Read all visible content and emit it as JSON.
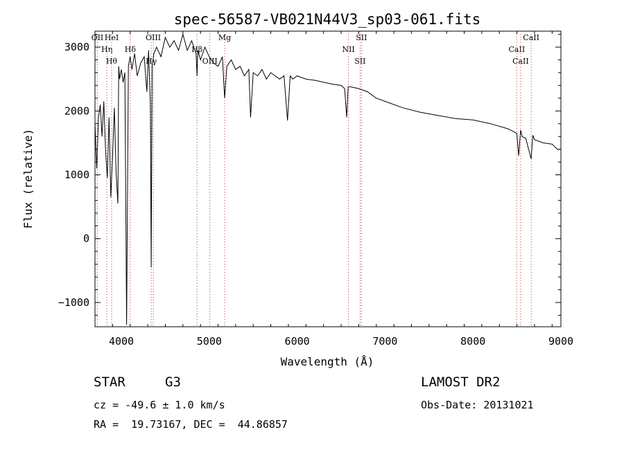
{
  "chart_data": {
    "type": "line",
    "title": "spec-56587-VB021N44V3_sp03-061.fits",
    "xlabel": "Wavelength (Å)",
    "ylabel": "Flux (relative)",
    "xlim": [
      3700,
      9000
    ],
    "ylim": [
      -1380,
      3250
    ],
    "xticks": [
      4000,
      5000,
      6000,
      7000,
      8000,
      9000
    ],
    "yticks": [
      -1000,
      0,
      1000,
      2000,
      3000
    ],
    "grid": false,
    "series": [
      {
        "x": [
          3700,
          3720,
          3740,
          3760,
          3780,
          3800,
          3820,
          3840,
          3860,
          3880,
          3900,
          3920,
          3940,
          3960,
          3970,
          3980,
          4000,
          4020,
          4040,
          4060,
          4080,
          4100,
          4120,
          4150,
          4180,
          4220,
          4260,
          4290,
          4310,
          4330,
          4340,
          4350,
          4370,
          4400,
          4450,
          4500,
          4550,
          4600,
          4650,
          4700,
          4750,
          4800,
          4850,
          4861,
          4870,
          4900,
          4950,
          5000,
          5050,
          5100,
          5150,
          5175,
          5200,
          5250,
          5300,
          5350,
          5400,
          5450,
          5470,
          5500,
          5550,
          5600,
          5650,
          5700,
          5750,
          5800,
          5850,
          5890,
          5920,
          5950,
          6000,
          6100,
          6200,
          6300,
          6400,
          6500,
          6540,
          6563,
          6580,
          6600,
          6700,
          6800,
          6900,
          7000,
          7200,
          7400,
          7600,
          7800,
          8000,
          8200,
          8400,
          8498,
          8520,
          8542,
          8560,
          8600,
          8662,
          8680,
          8700,
          8800,
          8900,
          8960,
          9000
        ],
        "values": [
          1800,
          1100,
          1900,
          2100,
          1600,
          2150,
          1400,
          950,
          1900,
          650,
          1300,
          2050,
          1050,
          550,
          2700,
          2500,
          2650,
          2450,
          2600,
          -1350,
          2700,
          2850,
          2650,
          2900,
          2550,
          2750,
          2850,
          2300,
          2950,
          2100,
          -450,
          2700,
          2900,
          3000,
          2850,
          3150,
          3000,
          3100,
          2950,
          3200,
          2950,
          3100,
          2900,
          2550,
          2950,
          2800,
          3000,
          2850,
          2750,
          2700,
          2850,
          2200,
          2700,
          2800,
          2650,
          2700,
          2550,
          2650,
          1900,
          2600,
          2550,
          2650,
          2500,
          2600,
          2550,
          2500,
          2550,
          1850,
          2550,
          2500,
          2550,
          2500,
          2480,
          2450,
          2420,
          2400,
          2350,
          1900,
          2380,
          2380,
          2350,
          2300,
          2200,
          2150,
          2050,
          1980,
          1930,
          1880,
          1860,
          1800,
          1720,
          1650,
          1300,
          1700,
          1600,
          1570,
          1250,
          1620,
          1550,
          1500,
          1480,
          1400,
          1400
        ]
      }
    ],
    "lines": [
      {
        "x": 3727,
        "label": "OII"
      },
      {
        "x": 3835,
        "label": "Hη"
      },
      {
        "x": 3889,
        "label": "Hθ"
      },
      {
        "x": 3889,
        "label": "HeI"
      },
      {
        "x": 4101,
        "label": "Hδ"
      },
      {
        "x": 4340,
        "label": "Hγ"
      },
      {
        "x": 4363,
        "label": "OIII"
      },
      {
        "x": 4861,
        "label": "Hβ"
      },
      {
        "x": 5007,
        "label": "OIII"
      },
      {
        "x": 5175,
        "label": "Mg"
      },
      {
        "x": 6583,
        "label": "NII"
      },
      {
        "x": 6716,
        "label": "SII"
      },
      {
        "x": 6731,
        "label": "SII"
      },
      {
        "x": 8498,
        "label": "CaII"
      },
      {
        "x": 8542,
        "label": "CaII"
      },
      {
        "x": 8662,
        "label": "CaII"
      }
    ]
  },
  "info": {
    "object_class": "STAR",
    "subclass": "G3",
    "survey": "LAMOST DR2",
    "redshift": "cz = -49.6 ± 1.0 km/s",
    "obs_date": "Obs-Date: 20131021",
    "coords": "RA =  19.73167, DEC =  44.86857"
  }
}
